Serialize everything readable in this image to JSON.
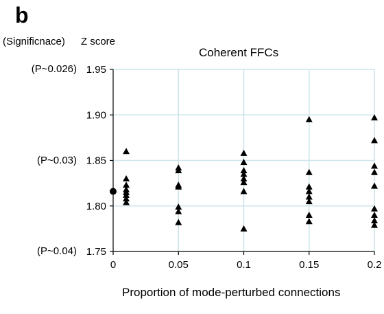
{
  "panel_letter": "b",
  "significance_header": "(Significnace)",
  "significance_ticks": [
    {
      "y": 1.95,
      "label": "(P~0.026)"
    },
    {
      "y": 1.85,
      "label": "(P~0.03)"
    },
    {
      "y": 1.75,
      "label": "(P~0.04)"
    }
  ],
  "colors": {
    "grid": "#cce3ea",
    "marker": "#000000",
    "axis": "#000000"
  },
  "chart_data": {
    "type": "scatter",
    "title": "Coherent FFCs",
    "xlabel": "Proportion of mode-perturbed connections",
    "ylabel": "Z score",
    "xlim": [
      0,
      0.2
    ],
    "ylim": [
      1.75,
      1.95
    ],
    "xticks": [
      0,
      0.05,
      0.1,
      0.15,
      0.2
    ],
    "xtick_labels": [
      "0",
      "0.05",
      "0.1",
      "0.15",
      "0.2"
    ],
    "yticks": [
      1.75,
      1.8,
      1.85,
      1.9,
      1.95
    ],
    "ytick_labels": [
      "1.75",
      "1.80",
      "1.85",
      "1.90",
      "1.95"
    ],
    "grid": true,
    "baseline_point": {
      "x": 0,
      "y": 1.816,
      "marker": "circle"
    },
    "marker": "triangle",
    "points": [
      {
        "x": 0.01,
        "y": 1.86
      },
      {
        "x": 0.01,
        "y": 1.83
      },
      {
        "x": 0.01,
        "y": 1.823
      },
      {
        "x": 0.01,
        "y": 1.818
      },
      {
        "x": 0.01,
        "y": 1.815
      },
      {
        "x": 0.01,
        "y": 1.812
      },
      {
        "x": 0.01,
        "y": 1.808
      },
      {
        "x": 0.01,
        "y": 1.804
      },
      {
        "x": 0.05,
        "y": 1.842
      },
      {
        "x": 0.05,
        "y": 1.839
      },
      {
        "x": 0.05,
        "y": 1.823
      },
      {
        "x": 0.05,
        "y": 1.821
      },
      {
        "x": 0.05,
        "y": 1.799
      },
      {
        "x": 0.05,
        "y": 1.794
      },
      {
        "x": 0.05,
        "y": 1.782
      },
      {
        "x": 0.1,
        "y": 1.858
      },
      {
        "x": 0.1,
        "y": 1.848
      },
      {
        "x": 0.1,
        "y": 1.839
      },
      {
        "x": 0.1,
        "y": 1.835
      },
      {
        "x": 0.1,
        "y": 1.83
      },
      {
        "x": 0.1,
        "y": 1.826
      },
      {
        "x": 0.1,
        "y": 1.816
      },
      {
        "x": 0.1,
        "y": 1.775
      },
      {
        "x": 0.15,
        "y": 1.895
      },
      {
        "x": 0.15,
        "y": 1.837
      },
      {
        "x": 0.15,
        "y": 1.821
      },
      {
        "x": 0.15,
        "y": 1.816
      },
      {
        "x": 0.15,
        "y": 1.81
      },
      {
        "x": 0.15,
        "y": 1.805
      },
      {
        "x": 0.15,
        "y": 1.79
      },
      {
        "x": 0.15,
        "y": 1.783
      },
      {
        "x": 0.2,
        "y": 1.897
      },
      {
        "x": 0.2,
        "y": 1.872
      },
      {
        "x": 0.2,
        "y": 1.844
      },
      {
        "x": 0.2,
        "y": 1.837
      },
      {
        "x": 0.2,
        "y": 1.822
      },
      {
        "x": 0.2,
        "y": 1.797
      },
      {
        "x": 0.2,
        "y": 1.79
      },
      {
        "x": 0.2,
        "y": 1.784
      },
      {
        "x": 0.2,
        "y": 1.779
      }
    ]
  }
}
